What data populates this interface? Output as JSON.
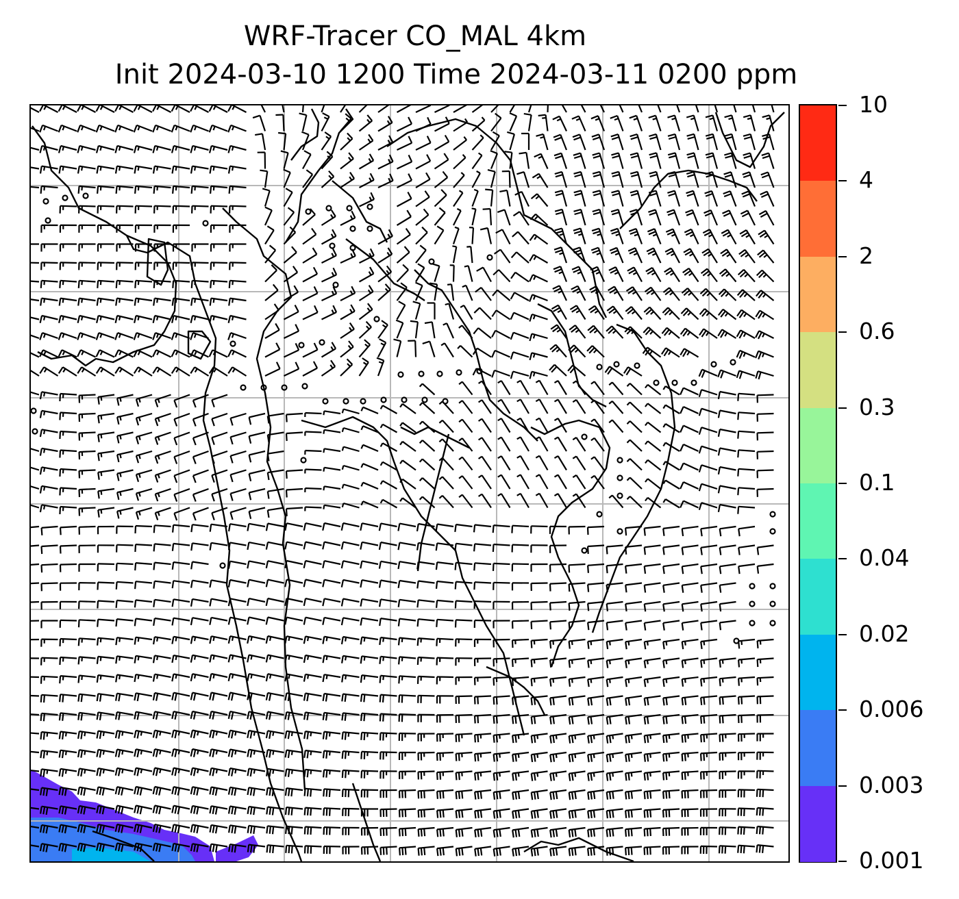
{
  "title": {
    "line1": "WRF-Tracer CO_MAL 4km",
    "line2": "Init 2024-03-10 1200 Time 2024-03-11 0200 ppm"
  },
  "colorbar": {
    "labels": [
      "10",
      "4",
      "2",
      "0.6",
      "0.3",
      "0.1",
      "0.04",
      "0.02",
      "0.006",
      "0.003",
      "0.001"
    ],
    "colors": [
      "#ff2a14",
      "#ff6e36",
      "#fdae61",
      "#d4e081",
      "#98f59a",
      "#5ff5b2",
      "#2ee0d0",
      "#00b4ee",
      "#3a7cf4",
      "#6730f7"
    ]
  },
  "map": {
    "gridlines": "on",
    "gridline_color": "#b8b8b8",
    "coastline_color": "#000000",
    "barb_color": "#000000",
    "tracer_fill_colors": [
      "#6730f7",
      "#3a7cf4",
      "#00b4ee"
    ]
  }
}
